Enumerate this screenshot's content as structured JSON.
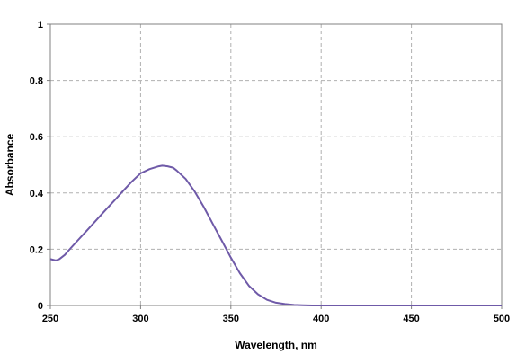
{
  "chart_data": {
    "type": "line",
    "title": "",
    "xlabel": "Wavelength, nm",
    "ylabel": "Absorbance",
    "xlim": [
      250,
      500
    ],
    "ylim": [
      0,
      1
    ],
    "x_ticks": [
      250,
      300,
      350,
      400,
      450,
      500
    ],
    "y_ticks": [
      0,
      0.2,
      0.4,
      0.6,
      0.8,
      1
    ],
    "grid": true,
    "legend": "none",
    "series_color": "#6f5aa8",
    "series": [
      {
        "x": [
          250,
          253,
          255,
          258,
          260,
          265,
          270,
          275,
          280,
          285,
          290,
          295,
          300,
          305,
          310,
          312,
          315,
          318,
          320,
          325,
          330,
          335,
          340,
          345,
          350,
          355,
          360,
          365,
          370,
          375,
          380,
          385,
          390,
          395,
          400,
          410,
          420,
          440,
          460,
          480,
          500
        ],
        "y": [
          0.165,
          0.16,
          0.165,
          0.18,
          0.195,
          0.23,
          0.265,
          0.3,
          0.335,
          0.37,
          0.405,
          0.44,
          0.47,
          0.485,
          0.495,
          0.497,
          0.495,
          0.49,
          0.48,
          0.45,
          0.405,
          0.35,
          0.29,
          0.23,
          0.17,
          0.115,
          0.07,
          0.04,
          0.02,
          0.01,
          0.005,
          0.002,
          0.001,
          0,
          0,
          0,
          0,
          0,
          0,
          0,
          0
        ]
      }
    ]
  }
}
